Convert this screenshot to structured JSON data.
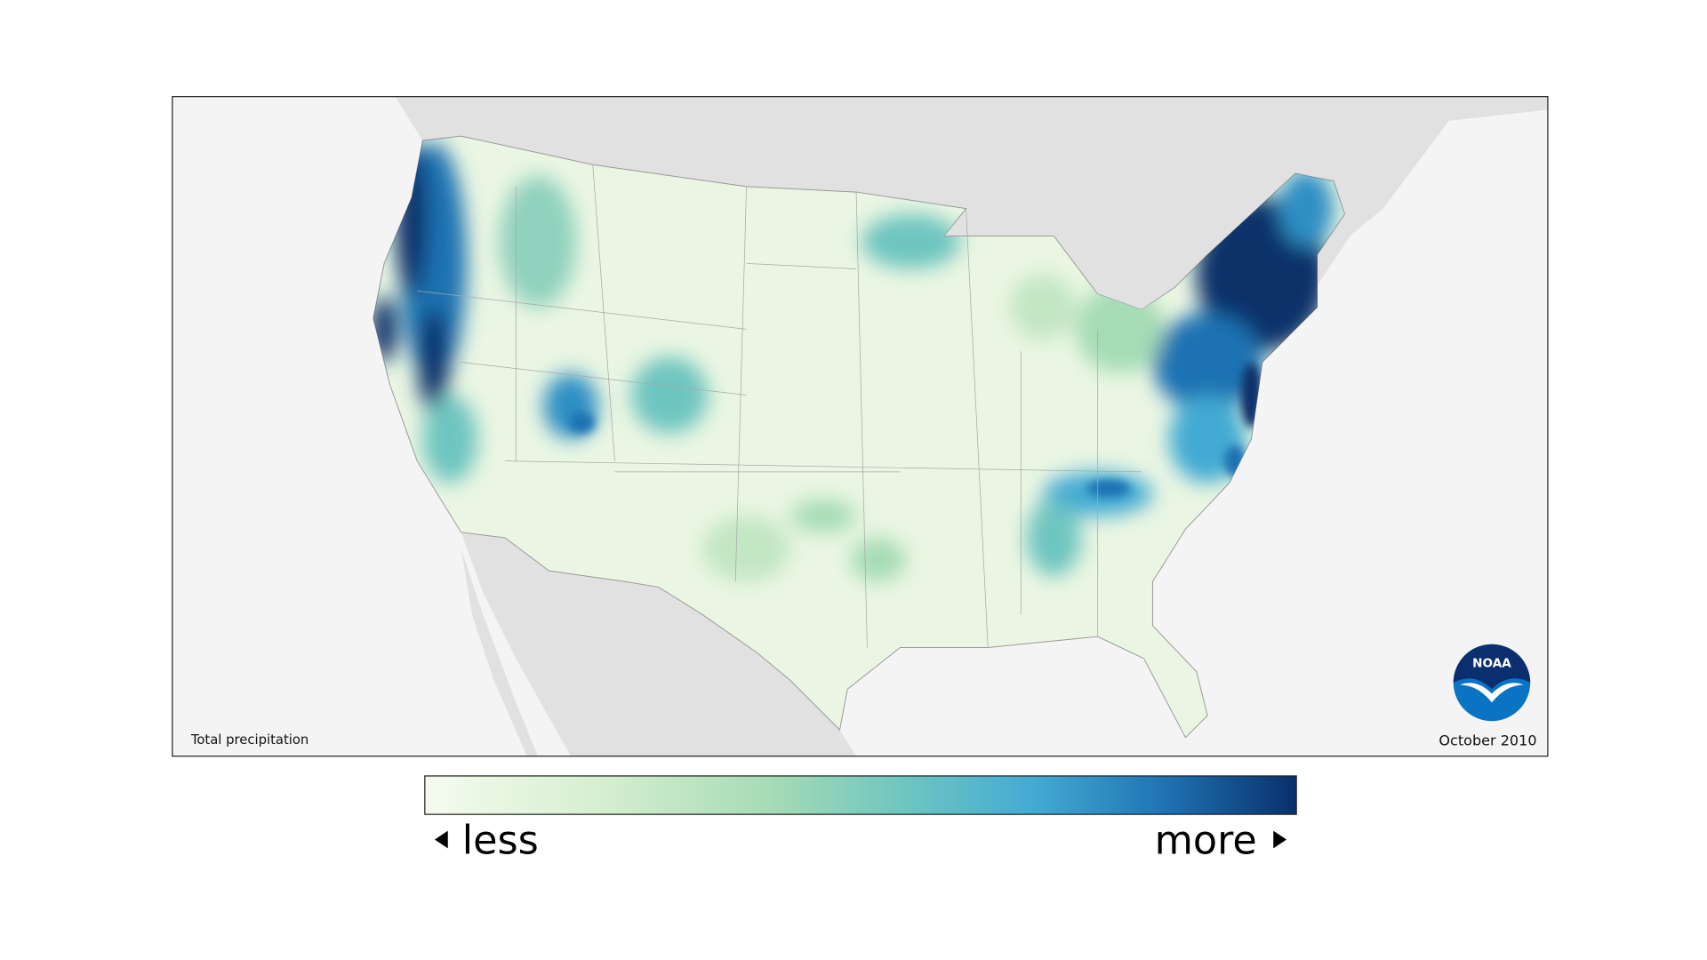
{
  "map": {
    "label": "Total precipitation",
    "date": "October 2010",
    "logo": "NOAA"
  },
  "legend": {
    "low": "less",
    "high": "more"
  }
}
